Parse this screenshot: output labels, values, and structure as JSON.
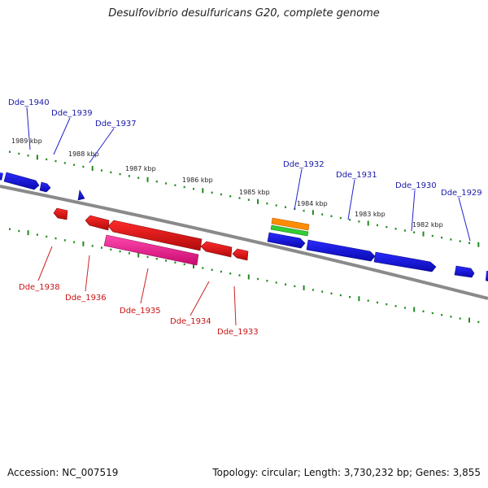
{
  "title": "Desulfovibrio desulfuricans G20, complete genome",
  "accession": "Accession: NC_007519",
  "summary": "Topology: circular; Length: 3,730,232 bp; Genes: 3,855",
  "colors": {
    "backbone": "#8a8a8a",
    "tick": "#1f8a1f",
    "forward_gene": "#1010e0",
    "reverse_gene": "#e01010",
    "pink_feature": "#ff1493",
    "orange_feature": "#ff8c00",
    "green_feature": "#33cc33",
    "top_label": "#1a1aa8",
    "bottom_label": "#c81414"
  },
  "scale_labels": [
    "1989 kbp",
    "1988 kbp",
    "1987 kbp",
    "1986 kbp",
    "1985 kbp",
    "1984 kbp",
    "1983 kbp",
    "1982 kbp"
  ],
  "top_genes": [
    "Dde_1940",
    "Dde_1939",
    "Dde_1937",
    "Dde_1932",
    "Dde_1931",
    "Dde_1930",
    "Dde_1929"
  ],
  "bottom_genes": [
    "Dde_1938",
    "Dde_1936",
    "Dde_1935",
    "Dde_1934",
    "Dde_1933"
  ]
}
